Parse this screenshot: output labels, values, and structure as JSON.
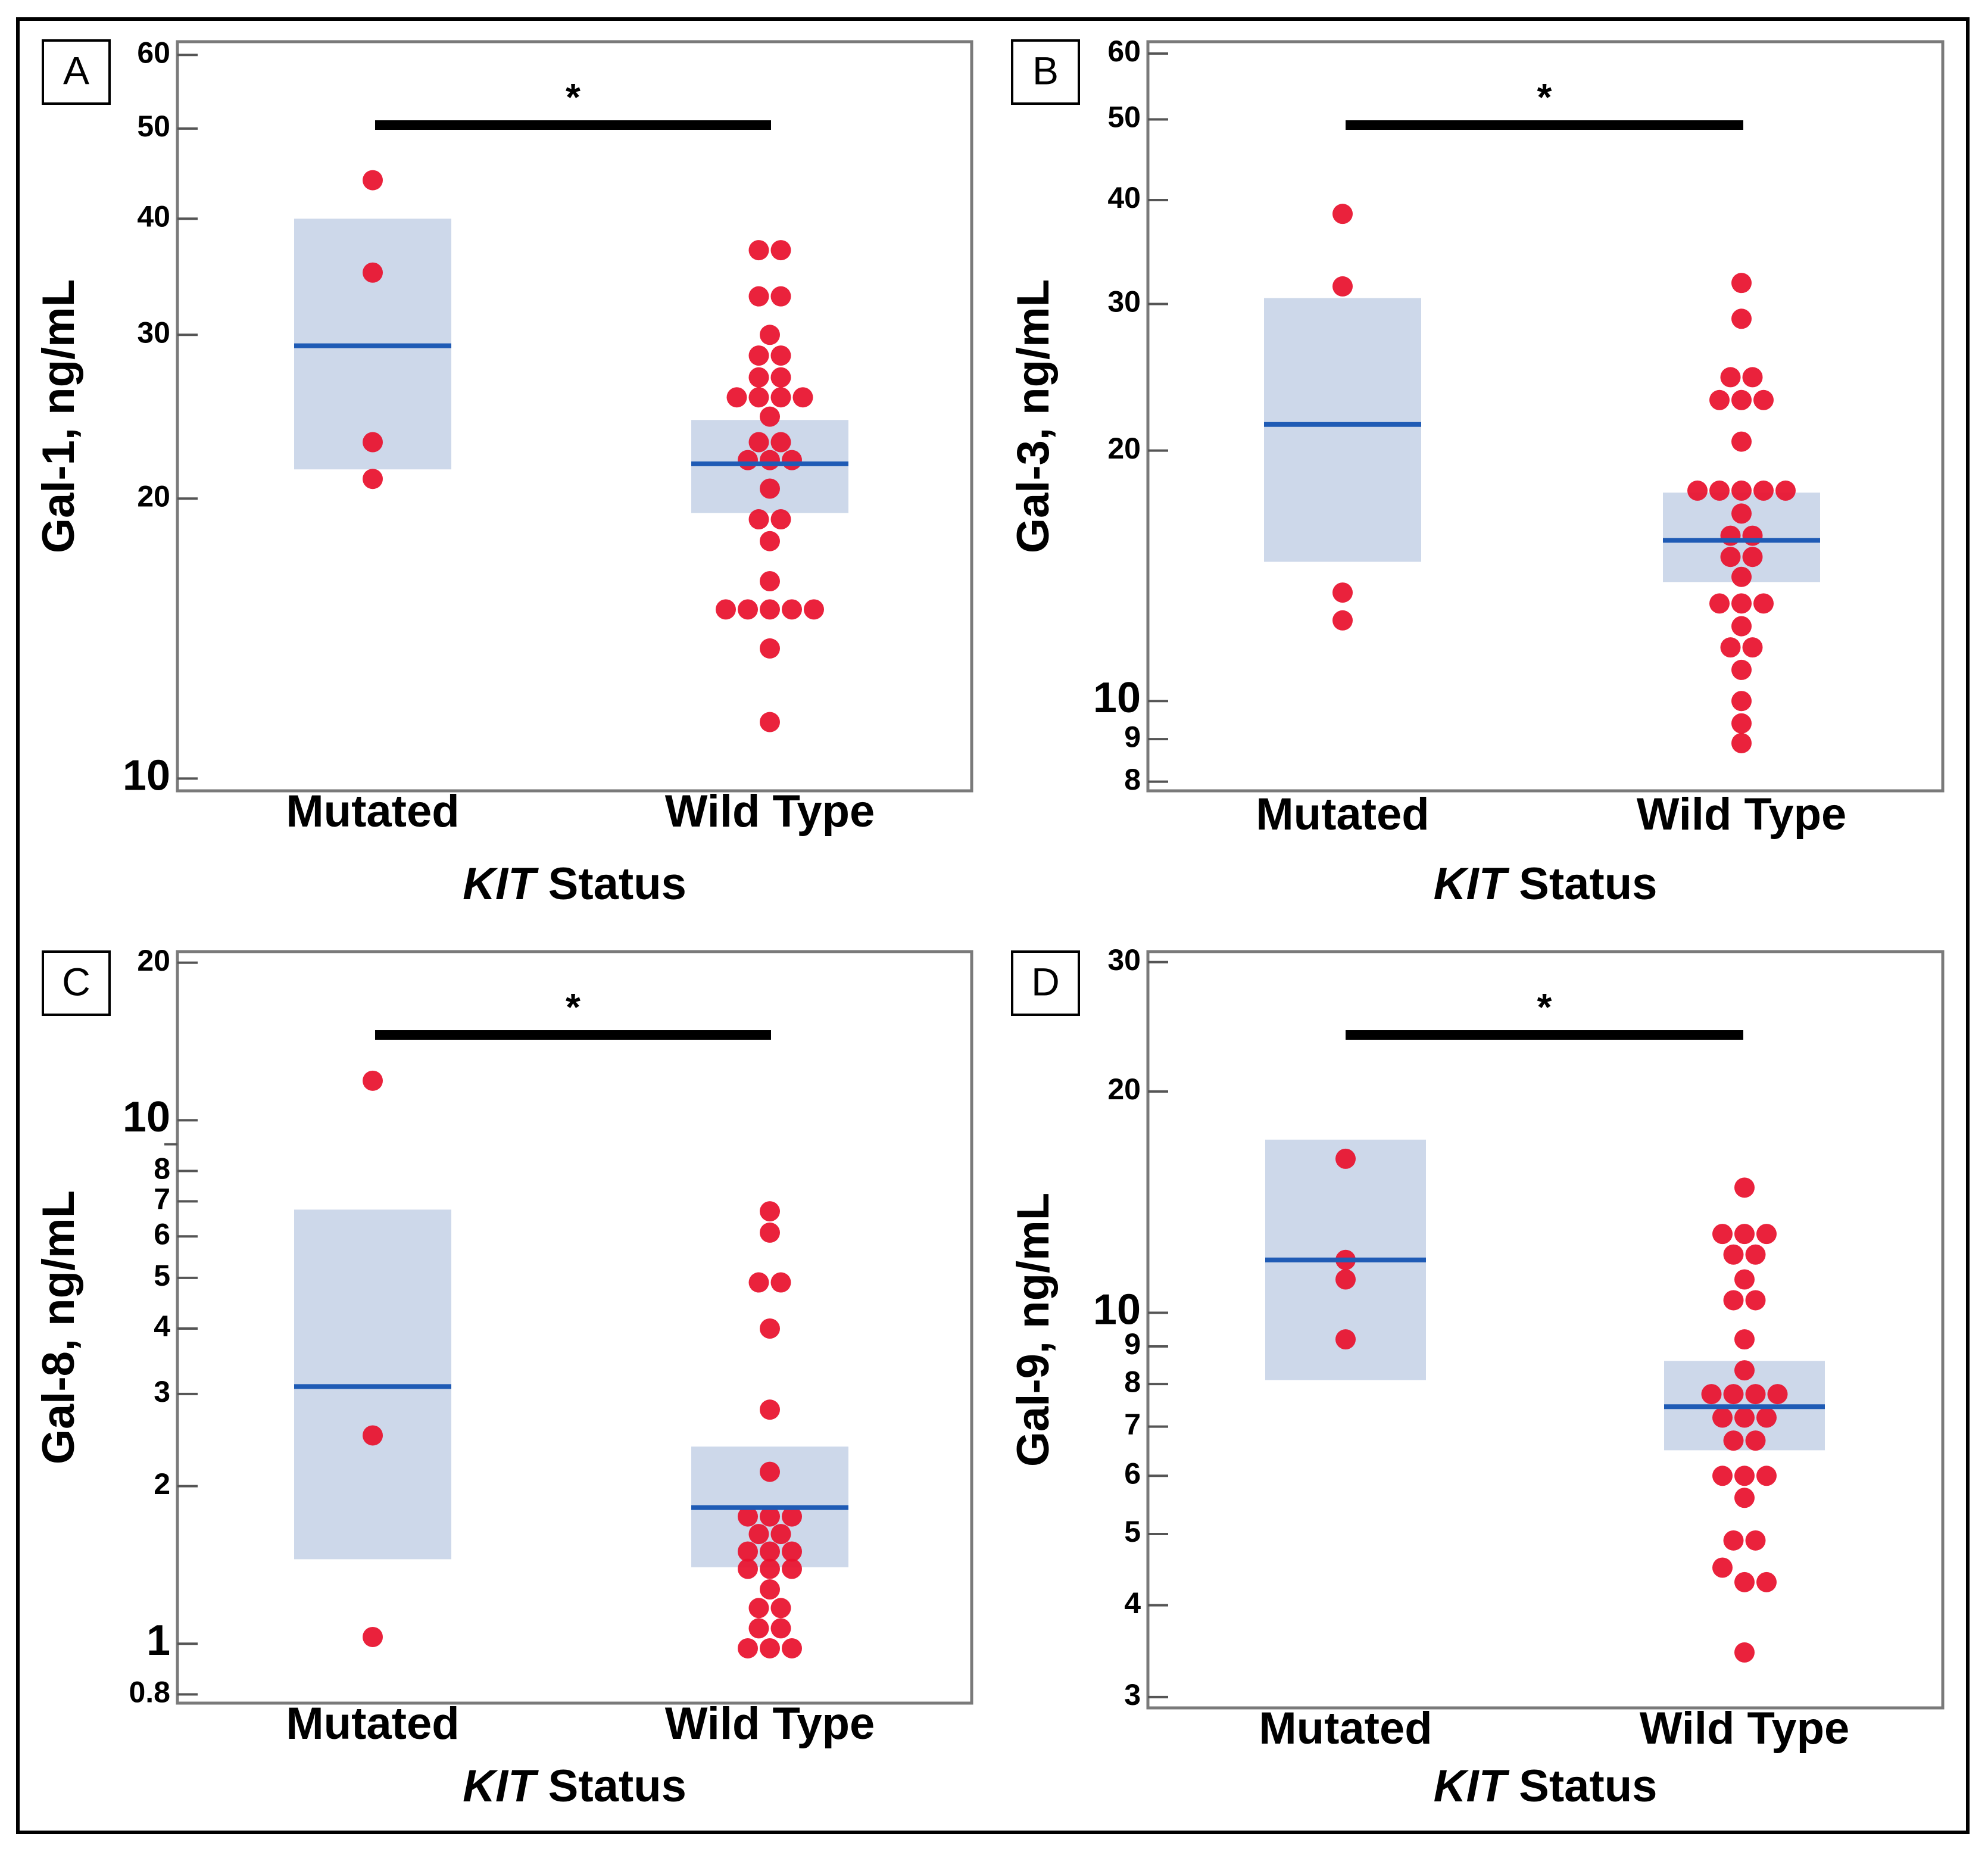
{
  "chart_data": [
    {
      "id": "A",
      "type": "scatter",
      "panel_label": "A",
      "ylabel": "Gal-1, ng/mL",
      "xlabel_italic": "KIT",
      "xlabel_rest": " Status",
      "yscale": "log",
      "ylim": [
        9.7,
        62
      ],
      "categories": [
        "Mutated",
        "Wild Type"
      ],
      "yticks": [
        10,
        20,
        30,
        40,
        50,
        60
      ],
      "ytick_labels": [
        "10",
        "20",
        "30",
        "40",
        "50",
        "60"
      ],
      "major_ticks": [
        10
      ],
      "significance": "*",
      "series": [
        {
          "name": "Mutated",
          "median": 29.2,
          "q1": 21.5,
          "q3": 40,
          "points": [
            44,
            35,
            23,
            21
          ]
        },
        {
          "name": "Wild Type",
          "median": 21.8,
          "q1": 19.3,
          "q3": 24.3,
          "points": [
            37,
            37,
            33,
            33,
            30,
            28.5,
            28.5,
            27,
            27,
            25.7,
            25.7,
            25.7,
            25.7,
            24.5,
            23,
            23,
            22,
            22,
            22,
            20.5,
            19,
            19,
            18,
            16.3,
            15.2,
            15.2,
            15.2,
            15.2,
            15.2,
            13.8,
            11.5
          ]
        }
      ]
    },
    {
      "id": "B",
      "type": "scatter",
      "panel_label": "B",
      "ylabel": "Gal-3, ng/mL",
      "xlabel_italic": "KIT",
      "xlabel_rest": " Status",
      "yscale": "log",
      "ylim": [
        7.8,
        62
      ],
      "categories": [
        "Mutated",
        "Wild Type"
      ],
      "yticks": [
        8,
        9,
        10,
        20,
        30,
        40,
        50,
        60
      ],
      "ytick_labels": [
        "8",
        "9",
        "10",
        "20",
        "30",
        "40",
        "50",
        "60"
      ],
      "major_ticks": [
        10
      ],
      "significance": "*",
      "series": [
        {
          "name": "Mutated",
          "median": 21.5,
          "q1": 14.7,
          "q3": 30.5,
          "points": [
            38.5,
            31.5,
            13.5,
            12.5
          ]
        },
        {
          "name": "Wild Type",
          "median": 15.6,
          "q1": 13.9,
          "q3": 17.8,
          "points": [
            31.8,
            28.8,
            24.5,
            24.5,
            23,
            23,
            23,
            20.5,
            17.9,
            17.9,
            17.9,
            17.9,
            17.9,
            16.8,
            15.8,
            15.8,
            14.9,
            14.9,
            14.1,
            13.1,
            13.1,
            13.1,
            12.3,
            11.6,
            11.6,
            10.9,
            10,
            9.4,
            8.9
          ]
        }
      ]
    },
    {
      "id": "C",
      "type": "scatter",
      "panel_label": "C",
      "ylabel": "Gal-8, ng/mL",
      "xlabel_italic": "KIT",
      "xlabel_rest": " Status",
      "yscale": "log",
      "ylim": [
        0.77,
        21
      ],
      "categories": [
        "Mutated",
        "Wild Type"
      ],
      "yticks": [
        0.8,
        1,
        2,
        3,
        4,
        5,
        6,
        7,
        8,
        10,
        20
      ],
      "ytick_labels": [
        "0.8",
        "1",
        "2",
        "3",
        "4",
        "5",
        "6",
        "7",
        "8",
        "10",
        "20"
      ],
      "major_ticks": [
        1,
        10
      ],
      "minor_ticks": [
        9
      ],
      "significance": "*",
      "series": [
        {
          "name": "Mutated",
          "median": 3.1,
          "q1": 1.45,
          "q3": 6.75,
          "points": [
            11.9,
            2.5,
            1.03
          ]
        },
        {
          "name": "Wild Type",
          "median": 1.82,
          "q1": 1.4,
          "q3": 2.38,
          "points": [
            6.7,
            6.1,
            4.9,
            4.9,
            4,
            2.8,
            2.13,
            1.75,
            1.75,
            1.75,
            1.62,
            1.62,
            1.5,
            1.5,
            1.5,
            1.39,
            1.39,
            1.39,
            1.27,
            1.17,
            1.17,
            1.07,
            1.07,
            0.98,
            0.98,
            0.98
          ]
        }
      ]
    },
    {
      "id": "D",
      "type": "scatter",
      "panel_label": "D",
      "ylabel": "Gal-9, ng/mL",
      "xlabel_italic": "KIT",
      "xlabel_rest": " Status",
      "yscale": "log",
      "ylim": [
        2.9,
        31
      ],
      "categories": [
        "Mutated",
        "Wild Type"
      ],
      "yticks": [
        3,
        4,
        5,
        6,
        7,
        8,
        9,
        10,
        20,
        30
      ],
      "ytick_labels": [
        "3",
        "4",
        "5",
        "6",
        "7",
        "8",
        "9",
        "10",
        "20",
        "30"
      ],
      "major_ticks": [
        10
      ],
      "significance": "*",
      "series": [
        {
          "name": "Mutated",
          "median": 11.8,
          "q1": 8.1,
          "q3": 17.2,
          "points": [
            16.2,
            11.8,
            11.1,
            9.2
          ]
        },
        {
          "name": "Wild Type",
          "median": 7.45,
          "q1": 6.5,
          "q3": 8.6,
          "points": [
            14.8,
            12.8,
            12.8,
            12.8,
            12,
            12,
            11.1,
            10.4,
            10.4,
            9.2,
            8.35,
            7.75,
            7.75,
            7.75,
            7.75,
            7.2,
            7.2,
            7.2,
            6.7,
            6.7,
            6.0,
            6.0,
            6.0,
            5.6,
            4.9,
            4.9,
            4.5,
            4.3,
            4.3,
            3.45
          ]
        }
      ]
    }
  ]
}
